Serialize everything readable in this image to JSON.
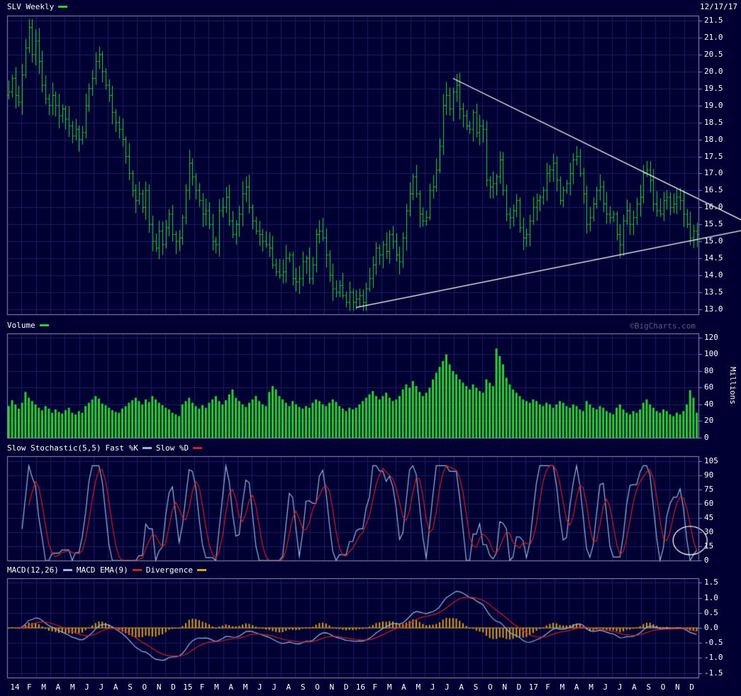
{
  "header": {
    "title": "SLV Weekly",
    "date": "12/17/17"
  },
  "watermark": "©BigCharts.com",
  "colors": {
    "background": "#000033",
    "grid": "#1d1d64",
    "border": "#8c8cb4",
    "tick": "#8080ff",
    "price_green": "#33cc33",
    "line_blue": "#94b8dc",
    "line_red": "#cc2222",
    "orange": "#d9a018",
    "white": "#ffffff",
    "watermark_gray": "#5a5a80"
  },
  "panels": {
    "price": {
      "ticks": [
        "21.5",
        "21.0",
        "20.5",
        "20.0",
        "19.5",
        "19.0",
        "18.5",
        "18.0",
        "17.5",
        "17.0",
        "16.5",
        "16.0",
        "15.5",
        "15.0",
        "14.5",
        "14.0",
        "13.5",
        "13.0"
      ]
    },
    "volume": {
      "label": "Volume",
      "unit": "Millions",
      "ticks": [
        "120",
        "100",
        "80",
        "60",
        "40",
        "20",
        "0"
      ]
    },
    "stochastic": {
      "label": "Slow Stochastic(5,5)",
      "k_label": "Fast %K",
      "d_label": "Slow %D",
      "ticks": [
        "105",
        "90",
        "75",
        "60",
        "45",
        "30",
        "15",
        "0"
      ]
    },
    "macd": {
      "label": "MACD(12,26)",
      "signal_label": "MACD EMA(9)",
      "div_label": "Divergence",
      "ticks": [
        "1.5",
        "1.0",
        "0.5",
        "0.0",
        "-0.5",
        "-1.0",
        "-1.5"
      ]
    }
  },
  "chart_data": {
    "type": "ohlc-multi-panel",
    "symbol": "SLV",
    "interval": "Weekly",
    "price_axis_range": [
      13.0,
      21.5
    ],
    "volume_axis_range": [
      0,
      120
    ],
    "stochastic_axis_range": [
      0,
      105
    ],
    "macd_axis_range": [
      -1.5,
      1.5
    ],
    "x_labels": [
      "14",
      "F",
      "M",
      "A",
      "M",
      "J",
      "J",
      "A",
      "S",
      "O",
      "N",
      "D",
      "15",
      "F",
      "M",
      "A",
      "M",
      "J",
      "J",
      "A",
      "S",
      "O",
      "N",
      "D",
      "16",
      "F",
      "M",
      "A",
      "M",
      "J",
      "J",
      "A",
      "S",
      "O",
      "N",
      "D",
      "17",
      "F",
      "M",
      "A",
      "M",
      "J",
      "J",
      "A",
      "S",
      "O",
      "N",
      "D"
    ],
    "weeks_per_year": [
      52,
      52,
      52,
      51
    ],
    "closes": [
      19.4,
      19.8,
      19.3,
      19.1,
      19.9,
      20.7,
      21.3,
      20.5,
      20.9,
      20.3,
      19.6,
      19.2,
      19.0,
      19.3,
      19.0,
      18.7,
      18.9,
      18.6,
      18.4,
      18.1,
      18.3,
      18.0,
      18.2,
      19.0,
      19.5,
      19.8,
      20.3,
      20.5,
      20.0,
      19.6,
      19.3,
      18.8,
      18.5,
      18.3,
      18.0,
      17.5,
      17.0,
      16.5,
      16.2,
      16.4,
      16.0,
      16.5,
      15.5,
      15.0,
      14.8,
      15.3,
      14.9,
      15.4,
      15.8,
      15.2,
      15.0,
      15.1,
      15.7,
      16.5,
      17.3,
      16.9,
      16.5,
      16.2,
      15.8,
      15.9,
      15.5,
      15.0,
      14.9,
      15.9,
      16.0,
      16.3,
      15.6,
      15.2,
      15.5,
      15.8,
      16.4,
      16.6,
      16.0,
      15.6,
      15.3,
      15.2,
      15.0,
      14.9,
      14.8,
      14.3,
      14.1,
      14.0,
      14.1,
      14.5,
      14.6,
      13.9,
      13.8,
      13.9,
      14.4,
      14.5,
      13.9,
      14.3,
      15.2,
      15.3,
      15.1,
      14.6,
      14.0,
      13.6,
      13.5,
      13.7,
      13.4,
      13.2,
      13.5,
      13.2,
      13.3,
      13.4,
      13.2,
      13.6,
      13.9,
      14.3,
      14.8,
      14.6,
      14.9,
      14.7,
      15.2,
      15.0,
      14.6,
      14.4,
      15.1,
      15.9,
      16.4,
      16.9,
      16.4,
      15.8,
      15.6,
      15.7,
      16.5,
      16.6,
      17.1,
      17.8,
      19.0,
      19.3,
      18.9,
      19.4,
      19.6,
      18.9,
      18.7,
      18.4,
      18.3,
      18.8,
      18.2,
      18.4,
      18.3,
      16.8,
      16.6,
      16.7,
      16.9,
      17.4,
      16.5,
      15.8,
      15.7,
      15.9,
      16.2,
      15.4,
      15.1,
      15.2,
      15.6,
      16.0,
      16.2,
      16.3,
      16.5,
      17.0,
      17.1,
      17.3,
      16.8,
      16.2,
      16.5,
      16.7,
      17.0,
      17.4,
      17.5,
      17.0,
      16.4,
      15.5,
      15.7,
      16.1,
      16.5,
      16.6,
      16.1,
      15.8,
      15.7,
      15.8,
      15.2,
      14.9,
      15.6,
      15.9,
      15.5,
      15.7,
      16.1,
      16.3,
      17.0,
      17.1,
      16.8,
      16.1,
      15.9,
      15.8,
      16.2,
      16.3,
      16.0,
      16.1,
      16.3,
      16.2,
      15.8,
      15.5,
      15.1,
      15.3,
      15.2
    ],
    "volumes_millions": [
      38,
      45,
      40,
      35,
      42,
      55,
      48,
      44,
      40,
      36,
      33,
      38,
      35,
      30,
      34,
      31,
      29,
      33,
      36,
      30,
      28,
      32,
      30,
      38,
      42,
      46,
      50,
      47,
      41,
      39,
      36,
      33,
      31,
      30,
      35,
      38,
      42,
      45,
      48,
      44,
      40,
      46,
      43,
      50,
      46,
      42,
      39,
      36,
      34,
      30,
      28,
      26,
      40,
      44,
      48,
      42,
      38,
      35,
      39,
      36,
      42,
      46,
      50,
      44,
      40,
      45,
      52,
      58,
      48,
      44,
      40,
      37,
      42,
      46,
      50,
      44,
      40,
      38,
      55,
      62,
      58,
      50,
      46,
      42,
      38,
      44,
      40,
      37,
      35,
      38,
      36,
      42,
      46,
      44,
      40,
      38,
      42,
      46,
      43,
      38,
      35,
      32,
      36,
      34,
      36,
      40,
      44,
      48,
      52,
      56,
      50,
      46,
      50,
      54,
      48,
      44,
      46,
      50,
      58,
      64,
      60,
      68,
      62,
      55,
      50,
      54,
      60,
      70,
      78,
      85,
      92,
      100,
      88,
      80,
      76,
      70,
      66,
      62,
      58,
      64,
      60,
      56,
      54,
      70,
      66,
      62,
      107,
      98,
      88,
      72,
      64,
      58,
      54,
      50,
      46,
      44,
      42,
      46,
      44,
      40,
      38,
      42,
      40,
      36,
      40,
      44,
      42,
      38,
      36,
      40,
      38,
      34,
      32,
      44,
      40,
      36,
      34,
      38,
      36,
      32,
      30,
      28,
      36,
      40,
      34,
      30,
      28,
      32,
      30,
      34,
      42,
      46,
      40,
      36,
      32,
      30,
      34,
      32,
      28,
      26,
      30,
      28,
      32,
      40,
      57,
      48,
      30
    ],
    "indicators": {
      "stochastic": {
        "period": 5,
        "smoothing": 5,
        "computed_from": "closes"
      },
      "macd": {
        "fast": 12,
        "slow": 26,
        "signal": 9,
        "computed_from": "closes"
      }
    },
    "trendlines": [
      {
        "name": "descending-resistance",
        "from_week": 133,
        "from_price": 19.8,
        "to_week": 221,
        "to_price": 15.55
      },
      {
        "name": "ascending-support",
        "from_week": 104,
        "from_price": 13.05,
        "to_week": 221,
        "to_price": 15.35
      }
    ],
    "annotation_ellipse": {
      "panel": "stochastic",
      "week": 204,
      "value": 21,
      "rx": 24,
      "ry": 20
    }
  }
}
